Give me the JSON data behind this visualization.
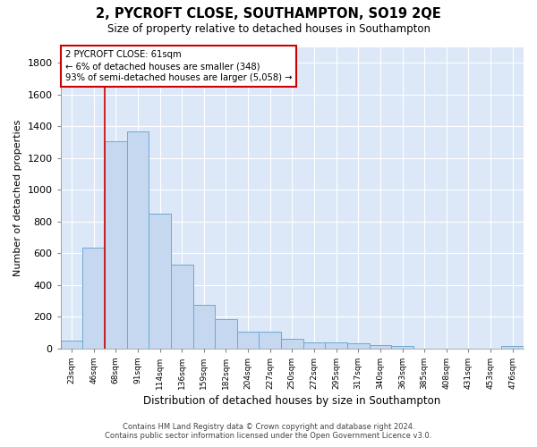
{
  "title": "2, PYCROFT CLOSE, SOUTHAMPTON, SO19 2QE",
  "subtitle": "Size of property relative to detached houses in Southampton",
  "xlabel": "Distribution of detached houses by size in Southampton",
  "ylabel": "Number of detached properties",
  "bar_color": "#c5d8f0",
  "bar_edge_color": "#6aaad4",
  "background_color": "#dce8f8",
  "fig_background": "#ffffff",
  "grid_color": "#ffffff",
  "categories": [
    "23sqm",
    "46sqm",
    "68sqm",
    "91sqm",
    "114sqm",
    "136sqm",
    "159sqm",
    "182sqm",
    "204sqm",
    "227sqm",
    "250sqm",
    "272sqm",
    "295sqm",
    "317sqm",
    "340sqm",
    "363sqm",
    "385sqm",
    "408sqm",
    "431sqm",
    "453sqm",
    "476sqm"
  ],
  "values": [
    50,
    635,
    1305,
    1370,
    848,
    530,
    275,
    185,
    103,
    103,
    62,
    40,
    37,
    30,
    22,
    13,
    0,
    0,
    0,
    0,
    13
  ],
  "ylim": [
    0,
    1900
  ],
  "yticks": [
    0,
    200,
    400,
    600,
    800,
    1000,
    1200,
    1400,
    1600,
    1800
  ],
  "property_label": "2 PYCROFT CLOSE: 61sqm",
  "annotation_line1": "← 6% of detached houses are smaller (348)",
  "annotation_line2": "93% of semi-detached houses are larger (5,058) →",
  "annotation_box_color": "#ffffff",
  "annotation_box_edge": "#cc0000",
  "vline_x": 1.5,
  "footer1": "Contains HM Land Registry data © Crown copyright and database right 2024.",
  "footer2": "Contains public sector information licensed under the Open Government Licence v3.0."
}
